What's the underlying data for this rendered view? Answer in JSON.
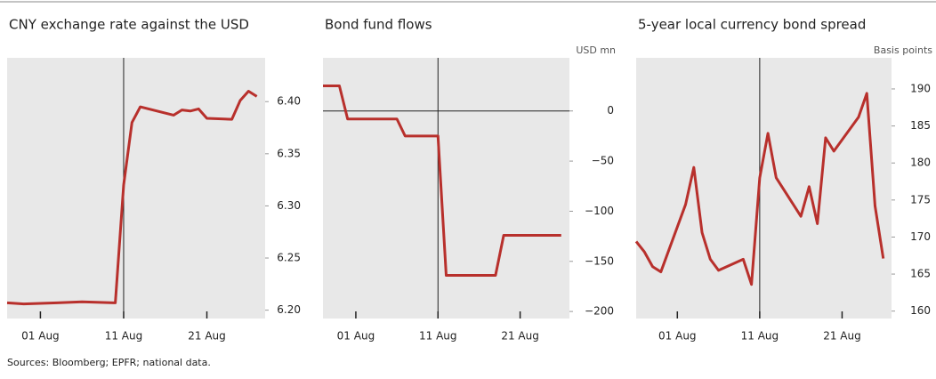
{
  "chart_data": [
    {
      "type": "line",
      "title": "CNY exchange rate against the USD",
      "x": [
        "28 Jul",
        "30 Jul",
        "03 Aug",
        "06 Aug",
        "10 Aug",
        "11 Aug",
        "12 Aug",
        "13 Aug",
        "17 Aug",
        "18 Aug",
        "19 Aug",
        "20 Aug",
        "21 Aug",
        "24 Aug",
        "25 Aug",
        "26 Aug",
        "27 Aug"
      ],
      "values": [
        6.207,
        6.206,
        6.207,
        6.208,
        6.207,
        6.32,
        6.38,
        6.395,
        6.387,
        6.392,
        6.391,
        6.393,
        6.384,
        6.383,
        6.401,
        6.41,
        6.405
      ],
      "color": "#b8302c",
      "xlim": [
        "28 Jul",
        "28 Aug"
      ],
      "xticks": [
        "01 Aug",
        "11 Aug",
        "21 Aug"
      ],
      "ylim": [
        6.192,
        6.442
      ],
      "yticks": [
        {
          "value": 6.2,
          "label": "6.20"
        },
        6.25,
        {
          "value": 6.3,
          "label": "6.30"
        },
        6.35,
        {
          "value": 6.4,
          "label": "6.40"
        }
      ],
      "vline": "11 Aug"
    },
    {
      "type": "line",
      "title": "Bond fund flows",
      "y_axis_label": "USD mn",
      "x": [
        "28 Jul",
        "30 Jul",
        "31 Jul",
        "06 Aug",
        "07 Aug",
        "11 Aug",
        "12 Aug",
        "18 Aug",
        "19 Aug",
        "26 Aug"
      ],
      "values": [
        25,
        25,
        -8,
        -8,
        -25,
        -25,
        -164,
        -164,
        -124,
        -124
      ],
      "color": "#b8302c",
      "xlim": [
        "28 Jul",
        "27 Aug"
      ],
      "xticks": [
        "01 Aug",
        "11 Aug",
        "21 Aug"
      ],
      "ylim": [
        -207,
        53
      ],
      "yticks": [
        {
          "value": -200,
          "label": "−200"
        },
        {
          "value": -150,
          "label": "−150"
        },
        {
          "value": -100,
          "label": "−100"
        },
        {
          "value": -50,
          "label": "−50"
        },
        0
      ],
      "vline": "11 Aug",
      "hline": 0
    },
    {
      "type": "line",
      "title": "5-year local currency bond spread",
      "y_axis_label": "Basis points",
      "x": [
        "27 Jul",
        "28 Jul",
        "29 Jul",
        "30 Jul",
        "02 Aug",
        "03 Aug",
        "04 Aug",
        "05 Aug",
        "06 Aug",
        "09 Aug",
        "10 Aug",
        "11 Aug",
        "12 Aug",
        "13 Aug",
        "16 Aug",
        "17 Aug",
        "18 Aug",
        "19 Aug",
        "20 Aug",
        "23 Aug",
        "24 Aug",
        "25 Aug",
        "26 Aug"
      ],
      "values": [
        169.4,
        168,
        166,
        165.3,
        174.4,
        179.4,
        170.6,
        167,
        165.5,
        167,
        163.6,
        178,
        184,
        178,
        172.8,
        176.8,
        171.8,
        183.4,
        181.6,
        186.2,
        189.4,
        174.2,
        167.1
      ],
      "color": "#b8302c",
      "xlim": [
        "27 Jul",
        "27 Aug"
      ],
      "xticks": [
        "01 Aug",
        "11 Aug",
        "21 Aug"
      ],
      "ylim": [
        159,
        194.2
      ],
      "yticks": [
        160,
        165,
        170,
        175,
        180,
        185,
        190
      ],
      "vline": "11 Aug"
    }
  ],
  "footer": "Sources: Bloomberg; EPFR; national data."
}
